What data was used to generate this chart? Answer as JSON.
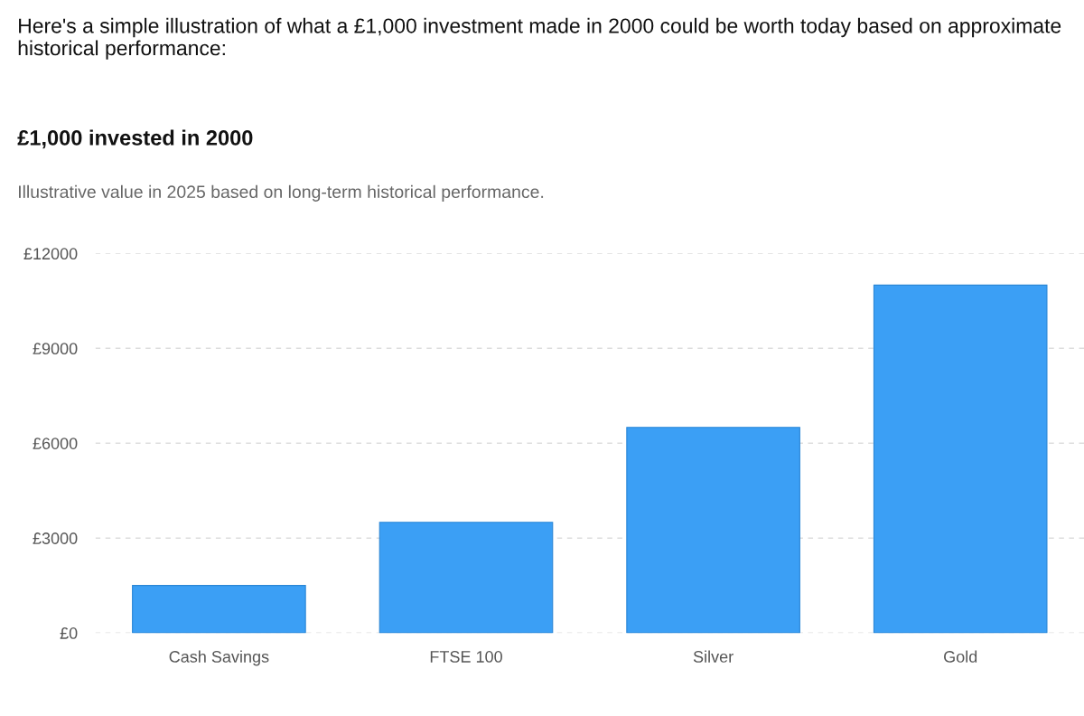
{
  "chart_data": {
    "type": "bar",
    "title": "£1,000 invested in 2000",
    "subtitle": "Illustrative value in 2025 based on long-term historical performance.",
    "annotations": [
      "Here's a simple illustration of what a £1,000 investment made in 2000 could be worth today based on approximate historical performance:"
    ],
    "categories": [
      "Cash Savings",
      "FTSE 100",
      "Silver",
      "Gold"
    ],
    "values": [
      1500,
      3500,
      6500,
      11000
    ],
    "color": "#3b9ff5",
    "ylim": [
      0,
      12000
    ],
    "yticks": [
      {
        "value": 0,
        "label": "£0"
      },
      {
        "value": 3000,
        "label": "£3000"
      },
      {
        "value": 6000,
        "label": "£6000"
      },
      {
        "value": 9000,
        "label": "£9000"
      },
      {
        "value": 12000,
        "label": "£12000"
      }
    ],
    "grid": "y",
    "legend": false
  }
}
